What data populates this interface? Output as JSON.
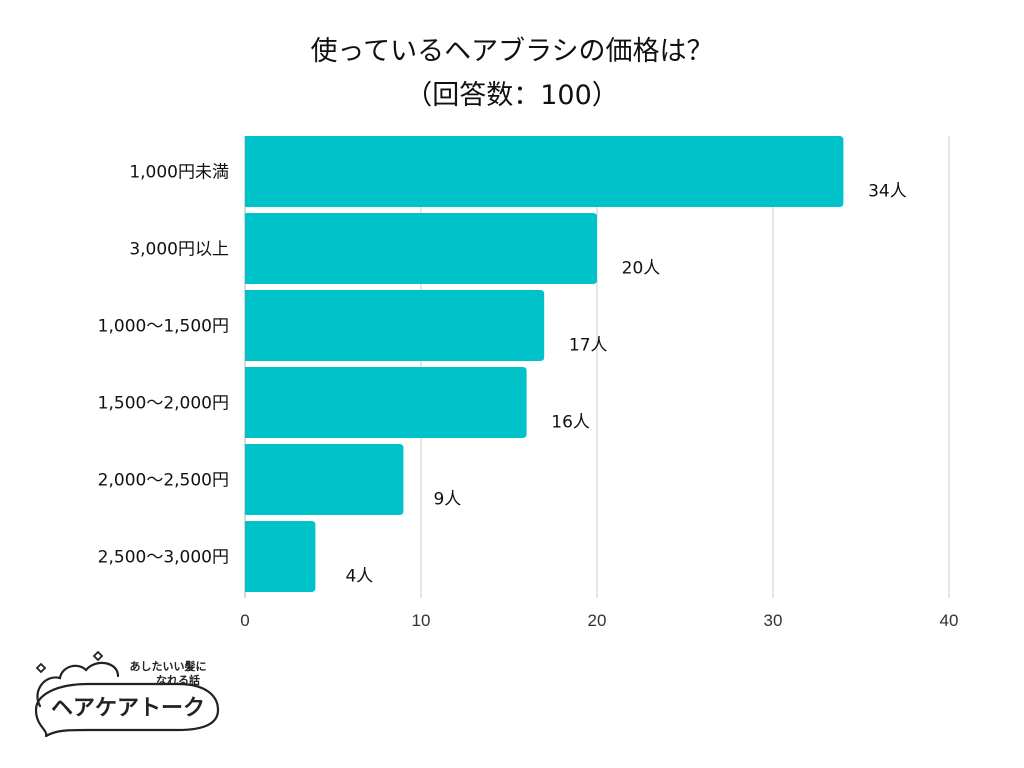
{
  "chart_data": {
    "type": "bar",
    "orientation": "horizontal",
    "title": "使っているヘアブラシの価格は？",
    "subtitle": "（回答数：100）",
    "categories": [
      "1,000円未満",
      "3,000円以上",
      "1,000〜1,500円",
      "1,500〜2,000円",
      "2,000〜2,500円",
      "2,500〜3,000円"
    ],
    "values": [
      34,
      20,
      17,
      16,
      9,
      4
    ],
    "value_labels": [
      "34人",
      "20人",
      "17人",
      "16人",
      "9人",
      "4人"
    ],
    "xlim": [
      0,
      40
    ],
    "xticks": [
      "0",
      "10",
      "20",
      "30",
      "40"
    ],
    "grid": true,
    "bar_color": "#00C2C9"
  },
  "logo": {
    "tagline_line1": "あしたいい髪に",
    "tagline_line2": "なれる話",
    "name": "ヘアケアトーク"
  }
}
